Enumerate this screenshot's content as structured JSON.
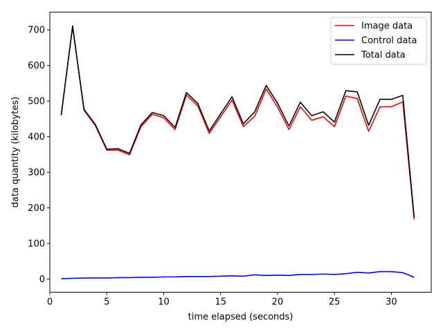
{
  "chart_data": {
    "type": "line",
    "xlabel": "time elapsed (seconds)",
    "ylabel": "data quantity (kilobytes)",
    "xlim": [
      0,
      33.5
    ],
    "ylim": [
      -37,
      750
    ],
    "xticks": [
      0,
      5,
      10,
      15,
      20,
      25,
      30
    ],
    "yticks": [
      0,
      100,
      200,
      300,
      400,
      500,
      600,
      700
    ],
    "grid": false,
    "legend_position": "top-right",
    "x": [
      1,
      2,
      3,
      4,
      5,
      6,
      7,
      8,
      9,
      10,
      11,
      12,
      13,
      14,
      15,
      16,
      17,
      18,
      19,
      20,
      21,
      22,
      23,
      24,
      25,
      26,
      27,
      28,
      29,
      30,
      31,
      32
    ],
    "series": [
      {
        "name": "Image data",
        "color": "#ff0000",
        "values": [
          460,
          709,
          474,
          431,
          362,
          362,
          349,
          428,
          463,
          453,
          420,
          517,
          486,
          409,
          456,
          503,
          428,
          458,
          534,
          483,
          420,
          484,
          446,
          456,
          428,
          514,
          507,
          415,
          484,
          484,
          498,
          168
        ]
      },
      {
        "name": "Control data",
        "color": "#0000ff",
        "values": [
          1,
          2,
          3,
          3,
          3,
          4,
          4,
          5,
          5,
          6,
          6,
          7,
          7,
          7,
          8,
          9,
          8,
          12,
          10,
          11,
          10,
          13,
          13,
          14,
          13,
          15,
          19,
          17,
          21,
          21,
          18,
          5
        ]
      },
      {
        "name": "Total data",
        "color": "#000000",
        "values": [
          461,
          711,
          477,
          434,
          365,
          366,
          353,
          433,
          468,
          459,
          426,
          524,
          493,
          416,
          464,
          512,
          436,
          470,
          544,
          494,
          430,
          497,
          459,
          470,
          441,
          529,
          526,
          432,
          505,
          505,
          516,
          173
        ]
      }
    ]
  }
}
